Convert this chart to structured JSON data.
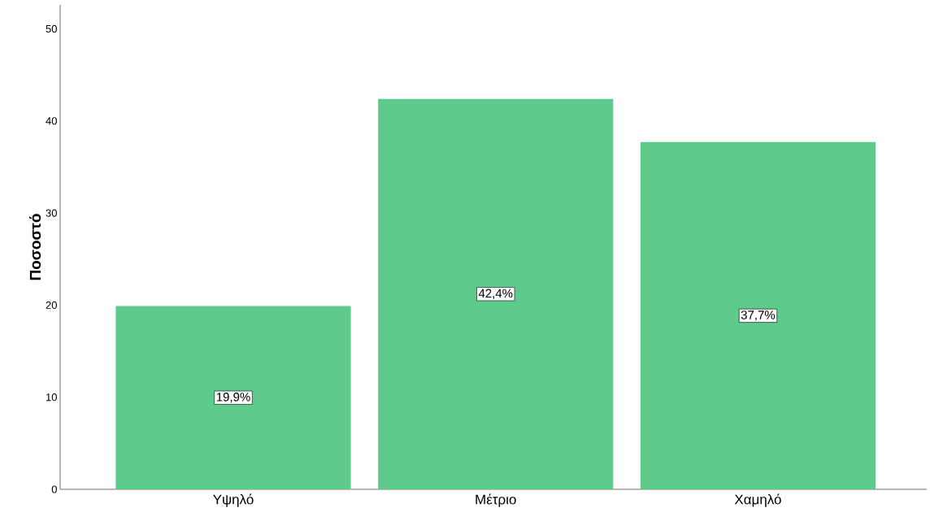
{
  "chart_data": {
    "type": "bar",
    "ylabel": "Ποσοστό",
    "categories": [
      "Υψηλό",
      "Μέτριο",
      "Χαμηλό"
    ],
    "values": [
      19.9,
      42.4,
      37.7
    ],
    "value_labels": [
      "19,9%",
      "42,4%",
      "37,7%"
    ],
    "color": "#5ecb8c",
    "ylim": [
      0,
      52.6
    ],
    "yticks": [
      0,
      10,
      20,
      30,
      40,
      50
    ]
  }
}
